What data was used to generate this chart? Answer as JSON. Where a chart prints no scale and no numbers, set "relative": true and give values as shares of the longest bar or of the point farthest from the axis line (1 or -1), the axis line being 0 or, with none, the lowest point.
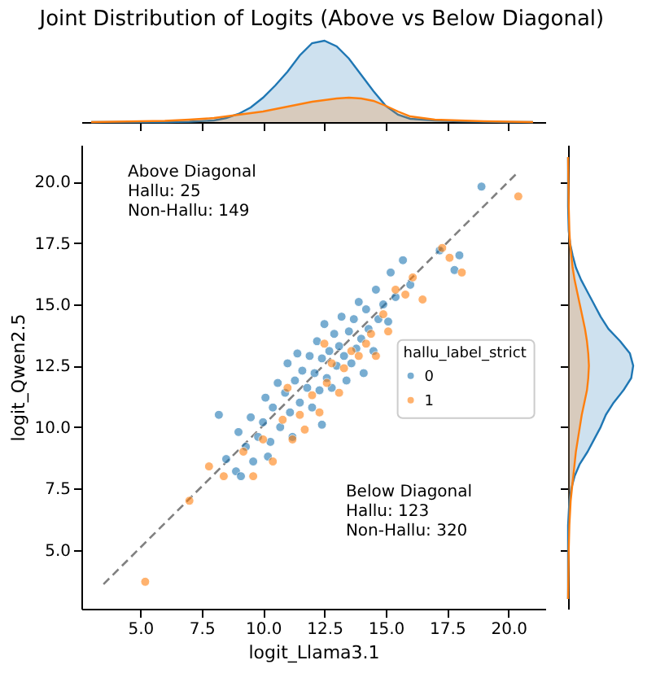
{
  "chart_data": [
    {
      "type": "area",
      "title": "Joint Distribution of Logits (Above vs Below Diagonal)",
      "relative": true,
      "tick_labels": false,
      "xlim": [
        2.6,
        21.5
      ],
      "xticks": [
        {
          "value": 5,
          "label": null
        },
        {
          "value": 7.5,
          "label": null
        },
        {
          "value": 10,
          "label": null
        },
        {
          "value": 12.5,
          "label": null
        },
        {
          "value": 15,
          "label": null
        },
        {
          "value": 17.5,
          "label": null
        },
        {
          "value": 20,
          "label": null
        }
      ],
      "x": [
        3,
        4,
        5,
        6,
        7,
        8,
        8.5,
        9,
        9.5,
        10,
        10.5,
        11,
        11.5,
        12,
        12.5,
        13,
        13.5,
        14,
        14.5,
        15,
        15.5,
        16,
        17,
        18,
        19,
        20,
        21
      ],
      "series": [
        {
          "color": "#1f77b4",
          "values": [
            0,
            0,
            0,
            0,
            0.005,
            0.02,
            0.05,
            0.1,
            0.18,
            0.3,
            0.45,
            0.62,
            0.82,
            0.97,
            1,
            0.93,
            0.78,
            0.58,
            0.38,
            0.2,
            0.09,
            0.04,
            0.02,
            0.01,
            0.005,
            0,
            0
          ]
        },
        {
          "color": "#ff7f0e",
          "values": [
            0,
            0.005,
            0.01,
            0.015,
            0.03,
            0.05,
            0.07,
            0.09,
            0.11,
            0.13,
            0.16,
            0.19,
            0.22,
            0.25,
            0.27,
            0.29,
            0.3,
            0.29,
            0.26,
            0.2,
            0.13,
            0.07,
            0.03,
            0.02,
            0.01,
            0.005,
            0
          ]
        }
      ]
    },
    {
      "type": "scatter",
      "xlabel": "logit_Llama3.1",
      "ylabel": "logit_Qwen2.5",
      "legend_title": "hallu_label_strict",
      "legend": "right",
      "xlim": [
        2.6,
        21.5
      ],
      "ylim": [
        2.6,
        21.5
      ],
      "xticks": [
        {
          "value": 5,
          "label": "5.0"
        },
        {
          "value": 7.5,
          "label": "7.5"
        },
        {
          "value": 10,
          "label": "10.0"
        },
        {
          "value": 12.5,
          "label": "12.5"
        },
        {
          "value": 15,
          "label": "15.0"
        },
        {
          "value": 17.5,
          "label": "17.5"
        },
        {
          "value": 20,
          "label": "20.0"
        }
      ],
      "yticks": [
        {
          "value": 5,
          "label": "5.0"
        },
        {
          "value": 7.5,
          "label": "7.5"
        },
        {
          "value": 10,
          "label": "10.0"
        },
        {
          "value": 12.5,
          "label": "12.5"
        },
        {
          "value": 15,
          "label": "15.0"
        },
        {
          "value": 17.5,
          "label": "17.5"
        },
        {
          "value": 20,
          "label": "20.0"
        }
      ],
      "annotations": [
        "Above Diagonal\nHallu: 25\nNon-Hallu: 149",
        "Below Diagonal\nHallu: 123\nNon-Hallu: 320"
      ],
      "series": [
        {
          "type": "line",
          "color": "#808080",
          "line_style": "dashed",
          "x": [
            3.5,
            20.4
          ],
          "values": [
            3.6,
            20.4
          ]
        },
        {
          "name": "0",
          "color": "#1f77b4",
          "marker": "circle",
          "x": [
            8.2,
            8.5,
            8.9,
            9.0,
            9.3,
            9.5,
            9.6,
            9.8,
            10.0,
            10.1,
            10.3,
            10.4,
            10.6,
            10.7,
            10.9,
            11.0,
            11.1,
            11.3,
            11.4,
            11.5,
            11.6,
            11.8,
            11.9,
            12.0,
            12.1,
            12.2,
            12.3,
            12.4,
            12.5,
            12.6,
            12.7,
            12.8,
            12.9,
            13.0,
            13.1,
            13.2,
            13.3,
            13.4,
            13.5,
            13.6,
            13.7,
            13.8,
            13.9,
            14.0,
            14.1,
            14.2,
            14.3,
            14.5,
            14.6,
            14.7,
            14.9,
            15.1,
            15.2,
            15.4,
            15.7,
            16.0,
            17.2,
            17.8,
            18.0,
            18.9,
            9.1,
            10.2,
            11.2,
            12.4
          ],
          "values": [
            10.5,
            8.7,
            8.2,
            9.8,
            9.2,
            10.4,
            8.6,
            9.6,
            10.2,
            11.2,
            9.4,
            10.8,
            11.8,
            10.0,
            11.4,
            12.6,
            10.6,
            11.9,
            13.0,
            11.0,
            12.3,
            11.6,
            12.9,
            10.8,
            12.2,
            13.5,
            11.5,
            12.8,
            14.2,
            12.0,
            13.1,
            11.6,
            13.8,
            12.5,
            13.3,
            14.5,
            12.9,
            11.9,
            13.9,
            12.6,
            14.4,
            13.2,
            15.1,
            13.6,
            12.2,
            14.8,
            14.0,
            13.1,
            15.6,
            14.4,
            15.0,
            14.3,
            16.3,
            15.3,
            16.8,
            15.8,
            17.2,
            16.4,
            17.0,
            19.8,
            8.0,
            8.8,
            9.6,
            10.1
          ]
        },
        {
          "name": "1",
          "color": "#ff7f0e",
          "marker": "circle",
          "x": [
            5.2,
            7.0,
            7.8,
            8.4,
            9.2,
            9.6,
            10.0,
            10.4,
            10.8,
            11.2,
            11.5,
            11.7,
            12.0,
            12.3,
            12.6,
            12.8,
            13.1,
            13.3,
            13.6,
            13.9,
            14.2,
            14.4,
            14.6,
            14.9,
            15.1,
            15.4,
            15.8,
            16.1,
            16.5,
            17.3,
            17.6,
            18.1,
            20.4,
            12.5,
            11.0
          ],
          "values": [
            3.7,
            7.0,
            8.4,
            8.0,
            9.0,
            8.0,
            9.5,
            8.6,
            10.3,
            9.5,
            10.5,
            9.9,
            11.3,
            10.6,
            11.8,
            12.6,
            11.4,
            12.4,
            13.1,
            12.9,
            13.4,
            13.8,
            12.9,
            14.6,
            13.9,
            15.6,
            15.4,
            16.1,
            15.2,
            17.3,
            16.9,
            16.3,
            19.4,
            13.4,
            11.6
          ]
        }
      ]
    },
    {
      "type": "area",
      "orientation": "horizontal",
      "relative": true,
      "tick_labels": false,
      "ylim": [
        2.6,
        21.5
      ],
      "yticks": [
        {
          "value": 5,
          "label": null
        },
        {
          "value": 7.5,
          "label": null
        },
        {
          "value": 10,
          "label": null
        },
        {
          "value": 12.5,
          "label": null
        },
        {
          "value": 15,
          "label": null
        },
        {
          "value": 17.5,
          "label": null
        },
        {
          "value": 20,
          "label": null
        }
      ],
      "x": [
        3,
        4,
        5,
        6,
        7,
        7.5,
        8,
        8.5,
        9,
        9.5,
        10,
        10.5,
        11,
        11.5,
        12,
        12.5,
        13,
        13.5,
        14,
        14.5,
        15,
        15.5,
        16,
        16.5,
        17,
        17.5,
        18,
        19,
        20,
        21
      ],
      "series": [
        {
          "color": "#1f77b4",
          "values": [
            0,
            0,
            0,
            0,
            0.02,
            0.05,
            0.1,
            0.18,
            0.3,
            0.4,
            0.5,
            0.58,
            0.7,
            0.85,
            0.97,
            1,
            0.95,
            0.8,
            0.62,
            0.5,
            0.4,
            0.3,
            0.2,
            0.12,
            0.07,
            0.03,
            0.01,
            0,
            0,
            0
          ]
        },
        {
          "color": "#ff7f0e",
          "values": [
            0,
            0.005,
            0.01,
            0.02,
            0.04,
            0.06,
            0.08,
            0.1,
            0.12,
            0.15,
            0.18,
            0.21,
            0.25,
            0.29,
            0.31,
            0.32,
            0.31,
            0.29,
            0.26,
            0.22,
            0.18,
            0.14,
            0.1,
            0.07,
            0.05,
            0.03,
            0.02,
            0.01,
            0.005,
            0
          ]
        }
      ]
    }
  ]
}
